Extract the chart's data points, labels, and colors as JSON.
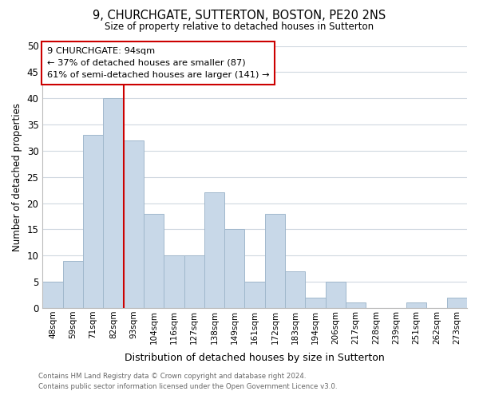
{
  "title": "9, CHURCHGATE, SUTTERTON, BOSTON, PE20 2NS",
  "subtitle": "Size of property relative to detached houses in Sutterton",
  "xlabel": "Distribution of detached houses by size in Sutterton",
  "ylabel": "Number of detached properties",
  "bar_color": "#c8d8e8",
  "bar_edge_color": "#a0b8cc",
  "vline_color": "#cc0000",
  "categories": [
    "48sqm",
    "59sqm",
    "71sqm",
    "82sqm",
    "93sqm",
    "104sqm",
    "116sqm",
    "127sqm",
    "138sqm",
    "149sqm",
    "161sqm",
    "172sqm",
    "183sqm",
    "194sqm",
    "206sqm",
    "217sqm",
    "228sqm",
    "239sqm",
    "251sqm",
    "262sqm",
    "273sqm"
  ],
  "values": [
    5,
    9,
    33,
    40,
    32,
    18,
    10,
    10,
    22,
    15,
    5,
    18,
    7,
    2,
    5,
    1,
    0,
    0,
    1,
    0,
    2
  ],
  "ylim": [
    0,
    50
  ],
  "yticks": [
    0,
    5,
    10,
    15,
    20,
    25,
    30,
    35,
    40,
    45,
    50
  ],
  "annotation_title": "9 CHURCHGATE: 94sqm",
  "annotation_line1": "← 37% of detached houses are smaller (87)",
  "annotation_line2": "61% of semi-detached houses are larger (141) →",
  "footnote1": "Contains HM Land Registry data © Crown copyright and database right 2024.",
  "footnote2": "Contains public sector information licensed under the Open Government Licence v3.0.",
  "background_color": "#ffffff",
  "grid_color": "#d0d8e0",
  "vline_index": 3.5
}
